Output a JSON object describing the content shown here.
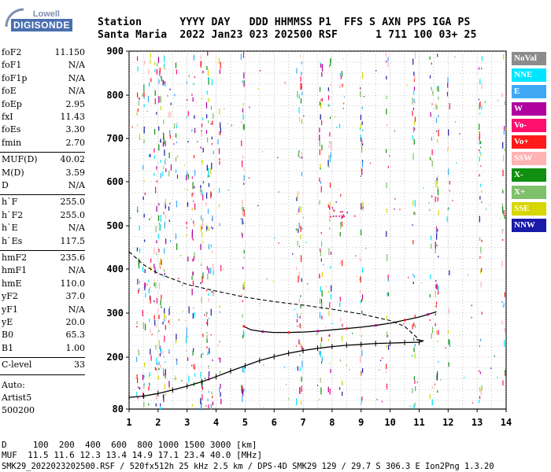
{
  "logo": {
    "top": "Lowell",
    "main": "DIGISONDE"
  },
  "header": {
    "line1": "Station      YYYY DAY   DDD HHMMSS P1  FFS S AXN PPS IGA PS",
    "line2": "Santa Maria  2022 Jan23 023 202500 RSF      1 711 100 03+ 25"
  },
  "params": {
    "group1": [
      {
        "label": "foF2",
        "value": "11.150"
      },
      {
        "label": "foF1",
        "value": "N/A"
      },
      {
        "label": "foF1p",
        "value": "N/A"
      },
      {
        "label": "foE",
        "value": "N/A"
      },
      {
        "label": "foEp",
        "value": "2.95"
      },
      {
        "label": "fxI",
        "value": "11.43"
      },
      {
        "label": "foEs",
        "value": "3.30"
      },
      {
        "label": "fmin",
        "value": "2.70"
      }
    ],
    "group2": [
      {
        "label": "MUF(D)",
        "value": "40.02"
      },
      {
        "label": "M(D)",
        "value": "3.59"
      },
      {
        "label": "D",
        "value": "N/A"
      }
    ],
    "group3": [
      {
        "label": "h`F",
        "value": "255.0"
      },
      {
        "label": "h`F2",
        "value": "255.0"
      },
      {
        "label": "h`E",
        "value": "N/A"
      },
      {
        "label": "h`Es",
        "value": "117.5"
      }
    ],
    "group4": [
      {
        "label": "hmF2",
        "value": "235.6"
      },
      {
        "label": "hmF1",
        "value": "N/A"
      },
      {
        "label": "hmE",
        "value": "110.0"
      },
      {
        "label": "yF2",
        "value": "37.0"
      },
      {
        "label": "yF1",
        "value": "N/A"
      },
      {
        "label": "yE",
        "value": "20.0"
      },
      {
        "label": "B0",
        "value": "65.3"
      },
      {
        "label": "B1",
        "value": "1.00"
      }
    ],
    "clevel": {
      "label": "C-level",
      "value": "33"
    },
    "auto_lines": [
      "Auto:",
      "Artist5",
      "500200"
    ]
  },
  "legend": [
    {
      "label": "NoVal",
      "color": "#8c8c8c"
    },
    {
      "label": "NNE",
      "color": "#00e5ff"
    },
    {
      "label": "E",
      "color": "#3fa9f5"
    },
    {
      "label": "W",
      "color": "#b0009e"
    },
    {
      "label": "Vo-",
      "color": "#ff0f6e"
    },
    {
      "label": "Vo+",
      "color": "#ff1a1a"
    },
    {
      "label": "SSW",
      "color": "#ffb3b3"
    },
    {
      "label": "X-",
      "color": "#108f10"
    },
    {
      "label": "X+",
      "color": "#7fc06a"
    },
    {
      "label": "SSE",
      "color": "#d6d600"
    },
    {
      "label": "NNW",
      "color": "#1a1aa8"
    }
  ],
  "bottom": {
    "line1": "D     100  200  400  600  800 1000 1500 3000 [km]",
    "line2": "MUF  11.5 11.6 12.3 13.4 14.9 17.1 23.4 40.0 [MHz]",
    "line3": "SMK29_2022023202500.RSF / 520fx512h 25 kHz 2.5 km / DPS-4D SMK29 129 / 29.7 S 306.3 E Ion2Png 1.3.20"
  },
  "chart_data": {
    "type": "scatter",
    "x_ticks": [
      "1",
      "2",
      "3",
      "4",
      "5",
      "6",
      "7",
      "8",
      "9",
      "10",
      "11",
      "12",
      "13",
      "14"
    ],
    "y_ticks": [
      "80",
      "200",
      "300",
      "400",
      "500",
      "600",
      "700",
      "800",
      "900"
    ],
    "xlim": [
      1,
      14
    ],
    "ylim": [
      80,
      900
    ],
    "series": [
      {
        "type": "solid-trace",
        "color": "#000000",
        "points": [
          [
            4.95,
            270
          ],
          [
            5.2,
            262
          ],
          [
            5.6,
            258
          ],
          [
            6.0,
            256
          ],
          [
            6.5,
            256
          ],
          [
            7.0,
            257
          ],
          [
            7.5,
            259
          ],
          [
            8.0,
            262
          ],
          [
            8.5,
            265
          ],
          [
            9.0,
            268
          ],
          [
            9.5,
            272
          ],
          [
            10.0,
            277
          ],
          [
            10.5,
            284
          ],
          [
            11.0,
            291
          ],
          [
            11.3,
            297
          ],
          [
            11.6,
            303
          ]
        ]
      },
      {
        "type": "marked-trace",
        "color": "#000000",
        "points": [
          [
            1.0,
            107
          ],
          [
            1.5,
            110
          ],
          [
            2.0,
            116
          ],
          [
            2.5,
            124
          ],
          [
            3.0,
            133
          ],
          [
            3.5,
            143
          ],
          [
            4.0,
            155
          ],
          [
            4.5,
            168
          ],
          [
            5.0,
            180
          ],
          [
            5.5,
            192
          ],
          [
            6.0,
            201
          ],
          [
            6.5,
            209
          ],
          [
            7.0,
            215
          ],
          [
            7.5,
            220
          ],
          [
            8.0,
            224
          ],
          [
            8.5,
            227
          ],
          [
            9.0,
            229
          ],
          [
            9.5,
            231
          ],
          [
            10.0,
            232
          ],
          [
            10.5,
            233
          ],
          [
            11.0,
            234
          ],
          [
            11.15,
            237
          ],
          [
            10.9,
            240
          ]
        ]
      },
      {
        "type": "dashed-profile",
        "color": "#000000",
        "points": [
          [
            1.0,
            440
          ],
          [
            1.5,
            410
          ],
          [
            2.0,
            390
          ],
          [
            3.0,
            365
          ],
          [
            4.0,
            350
          ],
          [
            5.0,
            336
          ],
          [
            6.0,
            326
          ],
          [
            7.0,
            318
          ],
          [
            8.0,
            309
          ],
          [
            9.0,
            298
          ],
          [
            10.0,
            283
          ],
          [
            10.5,
            270
          ],
          [
            11.0,
            240
          ]
        ]
      }
    ]
  }
}
